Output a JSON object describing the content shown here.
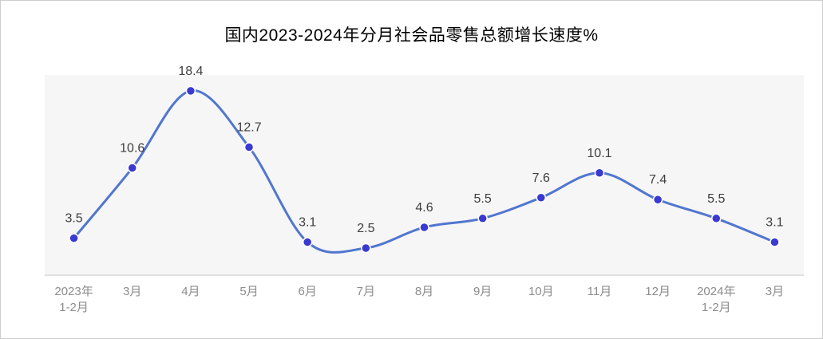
{
  "title": {
    "text": "国内2023-2024年分月社会品零售总额增长速度%",
    "color": "#000000"
  },
  "chart_data": {
    "type": "line",
    "smooth": true,
    "title": "国内2023-2024年分月社会品零售总额增长速度%",
    "categories": [
      "2023年\n1-2月",
      "3月",
      "4月",
      "5月",
      "6月",
      "7月",
      "8月",
      "9月",
      "10月",
      "11月",
      "12月",
      "2024年\n1-2月",
      "3月"
    ],
    "values": [
      3.5,
      10.6,
      18.4,
      12.7,
      3.1,
      2.5,
      4.6,
      5.5,
      7.6,
      10.1,
      7.4,
      5.5,
      3.1
    ],
    "xlabel": "",
    "ylabel": "",
    "ylim": [
      0,
      20
    ],
    "grid": false,
    "legend": false,
    "data_labels": true,
    "colors": {
      "line": "#5176cf",
      "point_fill": "#3a39d1",
      "point_border": "#ffffff",
      "value_label": "#3d3d3d",
      "tick_label": "#8c8c8c",
      "plot_background": "#f6f6f7",
      "axis_line": "#d9d9d9",
      "page_background": "#ffffff",
      "page_border": "#cdcdcd"
    }
  }
}
